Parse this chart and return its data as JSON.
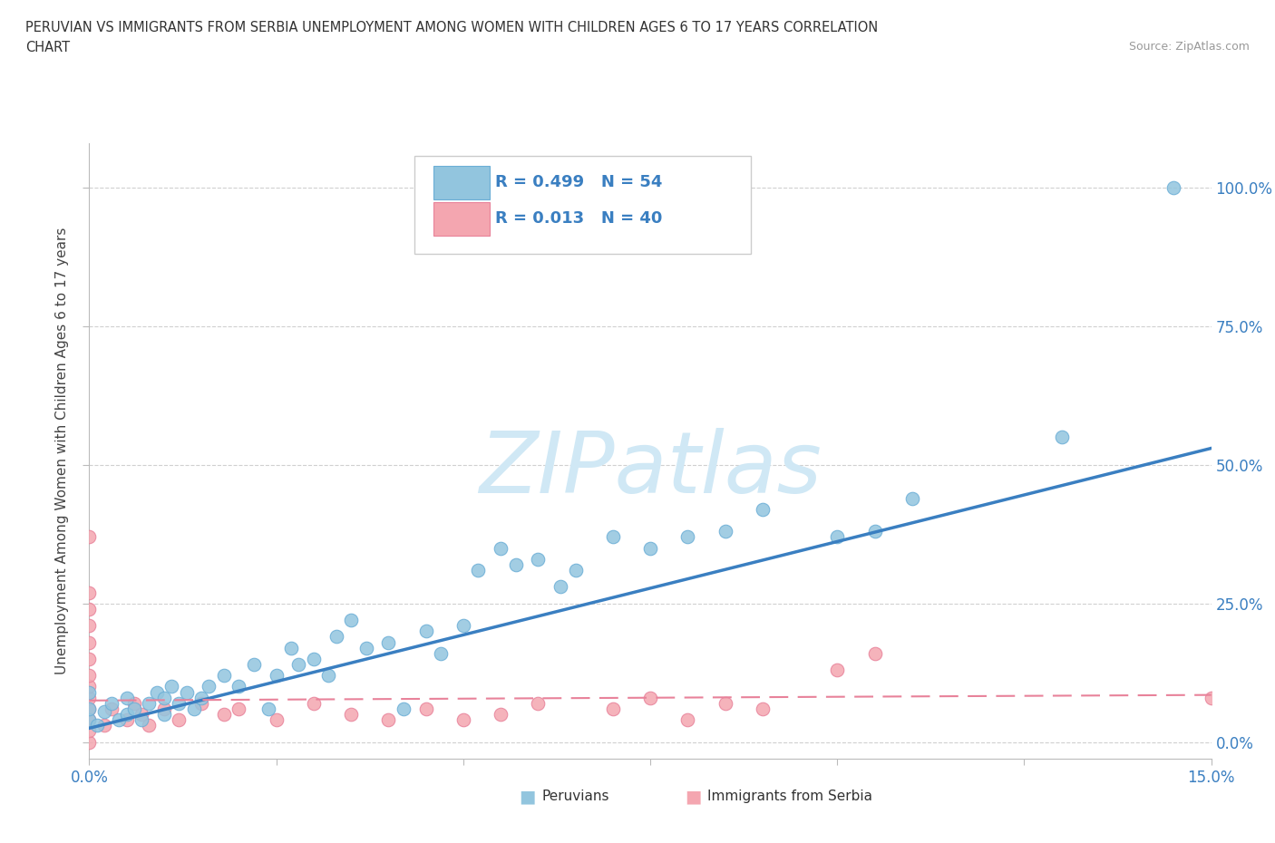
{
  "title_line1": "PERUVIAN VS IMMIGRANTS FROM SERBIA UNEMPLOYMENT AMONG WOMEN WITH CHILDREN AGES 6 TO 17 YEARS CORRELATION",
  "title_line2": "CHART",
  "source": "Source: ZipAtlas.com",
  "ylabel": "Unemployment Among Women with Children Ages 6 to 17 years",
  "xlim": [
    0.0,
    0.15
  ],
  "ylim": [
    -0.03,
    1.08
  ],
  "blue_color": "#92c5de",
  "blue_edge_color": "#6baed6",
  "pink_color": "#f4a6b0",
  "pink_edge_color": "#e8829a",
  "blue_line_color": "#3a7fc1",
  "pink_line_color": "#e8829a",
  "legend_text_color": "#3a7fc1",
  "axis_tick_color": "#3a7fc1",
  "watermark": "ZIPatlas",
  "watermark_color": "#d0e8f5",
  "peru_R": 0.499,
  "peru_N": 54,
  "serbia_R": 0.013,
  "serbia_N": 40,
  "peru_x": [
    0.0,
    0.0,
    0.0,
    0.001,
    0.002,
    0.003,
    0.004,
    0.005,
    0.005,
    0.006,
    0.007,
    0.008,
    0.009,
    0.01,
    0.01,
    0.011,
    0.012,
    0.013,
    0.014,
    0.015,
    0.016,
    0.018,
    0.02,
    0.022,
    0.024,
    0.025,
    0.027,
    0.028,
    0.03,
    0.032,
    0.033,
    0.035,
    0.037,
    0.04,
    0.042,
    0.045,
    0.047,
    0.05,
    0.052,
    0.055,
    0.057,
    0.06,
    0.063,
    0.065,
    0.07,
    0.075,
    0.08,
    0.085,
    0.09,
    0.1,
    0.105,
    0.11,
    0.13,
    0.145
  ],
  "peru_y": [
    0.04,
    0.06,
    0.09,
    0.03,
    0.055,
    0.07,
    0.04,
    0.05,
    0.08,
    0.06,
    0.04,
    0.07,
    0.09,
    0.05,
    0.08,
    0.1,
    0.07,
    0.09,
    0.06,
    0.08,
    0.1,
    0.12,
    0.1,
    0.14,
    0.06,
    0.12,
    0.17,
    0.14,
    0.15,
    0.12,
    0.19,
    0.22,
    0.17,
    0.18,
    0.06,
    0.2,
    0.16,
    0.21,
    0.31,
    0.35,
    0.32,
    0.33,
    0.28,
    0.31,
    0.37,
    0.35,
    0.37,
    0.38,
    0.42,
    0.37,
    0.38,
    0.44,
    0.55,
    1.0
  ],
  "serbia_x": [
    0.0,
    0.0,
    0.0,
    0.0,
    0.0,
    0.0,
    0.0,
    0.0,
    0.0,
    0.0,
    0.0,
    0.0,
    0.0,
    0.002,
    0.003,
    0.005,
    0.006,
    0.007,
    0.008,
    0.01,
    0.012,
    0.015,
    0.018,
    0.02,
    0.025,
    0.03,
    0.035,
    0.04,
    0.045,
    0.05,
    0.055,
    0.06,
    0.07,
    0.075,
    0.08,
    0.085,
    0.09,
    0.1,
    0.105,
    0.15
  ],
  "serbia_y": [
    0.0,
    0.02,
    0.04,
    0.06,
    0.08,
    0.1,
    0.12,
    0.15,
    0.18,
    0.21,
    0.24,
    0.27,
    0.37,
    0.03,
    0.06,
    0.04,
    0.07,
    0.05,
    0.03,
    0.06,
    0.04,
    0.07,
    0.05,
    0.06,
    0.04,
    0.07,
    0.05,
    0.04,
    0.06,
    0.04,
    0.05,
    0.07,
    0.06,
    0.08,
    0.04,
    0.07,
    0.06,
    0.13,
    0.16,
    0.08
  ],
  "blue_trend_x0": 0.0,
  "blue_trend_y0": 0.025,
  "blue_trend_x1": 0.15,
  "blue_trend_y1": 0.53,
  "pink_trend_x0": 0.0,
  "pink_trend_y0": 0.075,
  "pink_trend_x1": 0.15,
  "pink_trend_y1": 0.085
}
